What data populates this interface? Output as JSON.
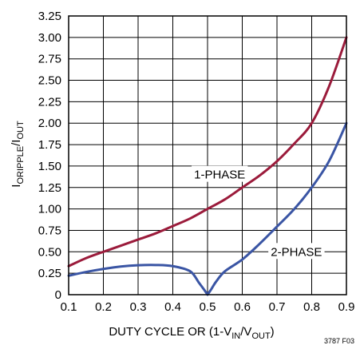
{
  "chart_data": {
    "type": "line",
    "xlabel": {
      "main": "DUTY CYCLE OR (1-V",
      "sub1": "IN",
      "mid": "/V",
      "sub2": "OUT",
      "end": ")"
    },
    "ylabel": {
      "main1": "I",
      "sub1": "ORIPPLE",
      "main2": "/I",
      "sub2": "OUT"
    },
    "xlim": [
      0.1,
      0.9
    ],
    "ylim": [
      0,
      3.25
    ],
    "x_ticks": [
      0.1,
      0.2,
      0.3,
      0.4,
      0.5,
      0.6,
      0.7,
      0.8,
      0.9
    ],
    "x_tick_labels": [
      "0.1",
      "0.2",
      "0.3",
      "0.4",
      "0.5",
      "0.6",
      "0.7",
      "0.8",
      "0.9"
    ],
    "y_ticks": [
      0,
      0.25,
      0.5,
      0.75,
      1.0,
      1.25,
      1.5,
      1.75,
      2.0,
      2.25,
      2.5,
      2.75,
      3.0,
      3.25
    ],
    "y_tick_labels": [
      "0",
      "0.25",
      "0.50",
      "0.75",
      "1.00",
      "1.25",
      "1.50",
      "1.75",
      "2.00",
      "2.25",
      "2.50",
      "2.75",
      "3.00",
      "3.25"
    ],
    "grid": true,
    "series": [
      {
        "name": "1-PHASE",
        "color": "#9b1b3b",
        "x": [
          0.1,
          0.15,
          0.2,
          0.25,
          0.3,
          0.35,
          0.4,
          0.45,
          0.5,
          0.55,
          0.6,
          0.65,
          0.7,
          0.75,
          0.8,
          0.85,
          0.9
        ],
        "y": [
          0.333,
          0.426,
          0.5,
          0.571,
          0.643,
          0.714,
          0.8,
          0.889,
          1.0,
          1.111,
          1.25,
          1.389,
          1.556,
          1.762,
          2.0,
          2.429,
          3.0
        ]
      },
      {
        "name": "2-PHASE",
        "color": "#3a55a4",
        "x": [
          0.1,
          0.15,
          0.2,
          0.25,
          0.3,
          0.35,
          0.4,
          0.45,
          0.475,
          0.49,
          0.5,
          0.51,
          0.525,
          0.55,
          0.6,
          0.65,
          0.7,
          0.75,
          0.8,
          0.85,
          0.9
        ],
        "y": [
          0.222,
          0.265,
          0.3,
          0.328,
          0.343,
          0.346,
          0.333,
          0.273,
          0.141,
          0.059,
          0.0,
          0.059,
          0.154,
          0.273,
          0.41,
          0.593,
          0.794,
          1.0,
          1.25,
          1.558,
          2.0
        ]
      }
    ],
    "annotations": [
      {
        "text": "1-PHASE",
        "series": "1-PHASE"
      },
      {
        "text": "2-PHASE",
        "series": "2-PHASE"
      }
    ],
    "figure_code": "3787 F03"
  }
}
